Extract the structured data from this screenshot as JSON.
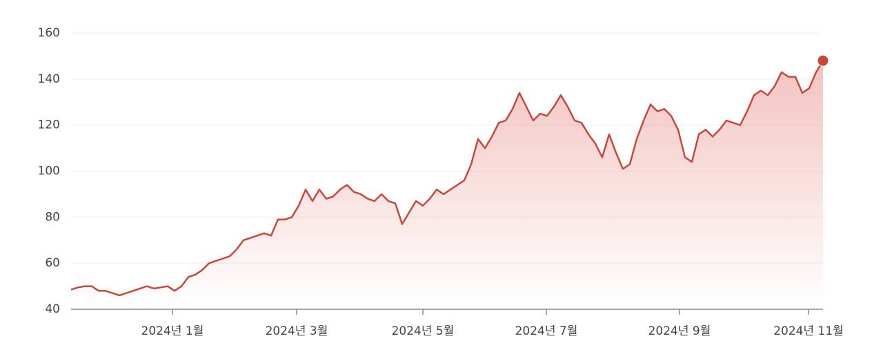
{
  "chart_data": {
    "type": "line",
    "color": "#c8473b",
    "grid": true,
    "values": [
      48.5,
      49.5,
      50,
      50,
      48,
      48,
      47,
      46,
      47,
      48,
      49,
      50,
      49,
      49.5,
      50,
      48,
      50,
      54,
      55,
      57,
      60,
      61,
      62,
      63,
      66,
      70,
      71,
      72,
      73,
      72,
      79,
      79,
      80,
      85,
      92,
      87,
      92,
      88,
      89,
      92,
      94,
      91,
      90,
      88,
      87,
      90,
      87,
      86,
      77,
      82,
      87,
      85,
      88,
      92,
      90,
      92,
      94,
      96,
      103,
      114,
      110,
      115,
      121,
      122,
      127,
      134,
      128,
      122,
      125,
      124,
      128,
      133,
      128,
      122,
      121,
      116,
      112,
      106,
      116,
      108,
      101,
      103,
      114,
      122,
      129,
      126,
      127,
      124,
      118,
      106,
      104,
      116,
      118,
      115,
      118,
      122,
      121,
      120,
      126,
      133,
      135,
      133,
      137,
      143,
      141,
      141,
      134,
      136,
      143,
      148
    ],
    "xlim": [
      0,
      109
    ],
    "xticks": [
      {
        "value": 14.7,
        "label": "2024년 1월"
      },
      {
        "value": 32.7,
        "label": "2024년 3월"
      },
      {
        "value": 51,
        "label": "2024년 5월"
      },
      {
        "value": 68.9,
        "label": "2024년 7월"
      },
      {
        "value": 88.2,
        "label": "2024년 9월"
      },
      {
        "value": 106.9,
        "label": "2024년 11월"
      }
    ],
    "ylim": [
      40,
      160
    ],
    "yticks": [
      40,
      60,
      80,
      100,
      120,
      140,
      160
    ]
  }
}
